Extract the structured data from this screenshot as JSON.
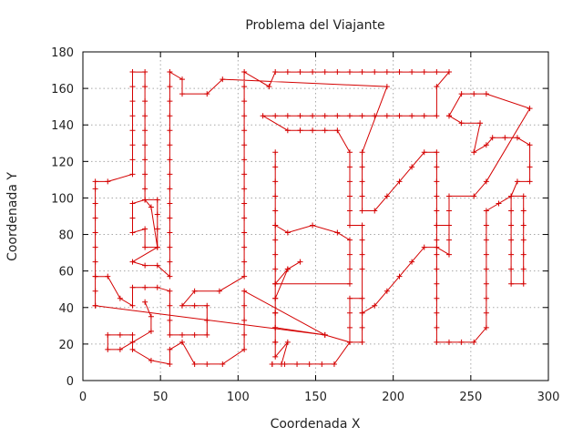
{
  "chart_data": {
    "type": "line",
    "title": "Problema del Viajante",
    "xlabel": "Coordenada X",
    "ylabel": "Coordenada Y",
    "xlim": [
      0,
      300
    ],
    "ylim": [
      0,
      180
    ],
    "xticks": [
      0,
      50,
      100,
      150,
      200,
      250,
      300
    ],
    "yticks": [
      0,
      20,
      40,
      60,
      80,
      100,
      120,
      140,
      160,
      180
    ],
    "grid": true,
    "series_color": "#d40000",
    "marker": "plus",
    "series": [
      {
        "points": [
          [
            8,
            41
          ],
          [
            8,
            49
          ],
          [
            8,
            57
          ],
          [
            8,
            65
          ],
          [
            8,
            73
          ],
          [
            8,
            81
          ],
          [
            8,
            89
          ],
          [
            8,
            97
          ],
          [
            8,
            105
          ],
          [
            8,
            109
          ],
          [
            16,
            109
          ],
          [
            32,
            113
          ],
          [
            32,
            121
          ],
          [
            32,
            129
          ],
          [
            32,
            137
          ],
          [
            32,
            145
          ],
          [
            32,
            153
          ],
          [
            32,
            161
          ],
          [
            32,
            169
          ],
          [
            40,
            169
          ],
          [
            40,
            161
          ],
          [
            40,
            153
          ],
          [
            40,
            145
          ],
          [
            40,
            137
          ],
          [
            40,
            129
          ],
          [
            40,
            121
          ],
          [
            40,
            113
          ],
          [
            40,
            105
          ],
          [
            40,
            99
          ],
          [
            48,
            99
          ],
          [
            48,
            91
          ],
          [
            48,
            83
          ],
          [
            48,
            73
          ],
          [
            40,
            73
          ],
          [
            40,
            83
          ],
          [
            32,
            81
          ],
          [
            32,
            89
          ],
          [
            32,
            97
          ],
          [
            40,
            99
          ],
          [
            44,
            95
          ],
          [
            48,
            73
          ],
          [
            32,
            65
          ],
          [
            40,
            63
          ],
          [
            48,
            63
          ],
          [
            56,
            57
          ],
          [
            56,
            65
          ],
          [
            56,
            73
          ],
          [
            56,
            81
          ],
          [
            56,
            89
          ],
          [
            56,
            97
          ],
          [
            56,
            105
          ],
          [
            56,
            113
          ],
          [
            56,
            121
          ],
          [
            56,
            129
          ],
          [
            56,
            137
          ],
          [
            56,
            145
          ],
          [
            56,
            153
          ],
          [
            56,
            161
          ],
          [
            56,
            169
          ],
          [
            64,
            165
          ],
          [
            64,
            157
          ],
          [
            80,
            157
          ],
          [
            90,
            165
          ],
          [
            196,
            161
          ],
          [
            180,
            125
          ],
          [
            180,
            117
          ],
          [
            180,
            109
          ],
          [
            180,
            101
          ],
          [
            180,
            93
          ],
          [
            188,
            93
          ],
          [
            196,
            101
          ],
          [
            204,
            109
          ],
          [
            212,
            117
          ],
          [
            220,
            125
          ],
          [
            228,
            125
          ],
          [
            228,
            117
          ],
          [
            228,
            109
          ],
          [
            228,
            101
          ],
          [
            228,
            93
          ],
          [
            228,
            85
          ],
          [
            236,
            85
          ],
          [
            236,
            77
          ],
          [
            236,
            69
          ],
          [
            228,
            73
          ],
          [
            220,
            73
          ],
          [
            212,
            65
          ],
          [
            204,
            57
          ],
          [
            196,
            49
          ],
          [
            188,
            41
          ],
          [
            180,
            37
          ],
          [
            180,
            45
          ],
          [
            172,
            45
          ],
          [
            172,
            37
          ],
          [
            172,
            29
          ],
          [
            172,
            21
          ],
          [
            180,
            21
          ],
          [
            180,
            29
          ],
          [
            180,
            37
          ],
          [
            180,
            61
          ],
          [
            180,
            69
          ],
          [
            180,
            77
          ],
          [
            180,
            85
          ],
          [
            172,
            85
          ],
          [
            172,
            93
          ],
          [
            172,
            101
          ],
          [
            172,
            109
          ],
          [
            172,
            117
          ],
          [
            172,
            125
          ],
          [
            164,
            137
          ],
          [
            156,
            137
          ],
          [
            148,
            137
          ],
          [
            140,
            137
          ],
          [
            132,
            137
          ],
          [
            116,
            145
          ],
          [
            124,
            145
          ],
          [
            132,
            145
          ],
          [
            140,
            145
          ],
          [
            148,
            145
          ],
          [
            156,
            145
          ],
          [
            164,
            145
          ],
          [
            172,
            145
          ],
          [
            180,
            145
          ],
          [
            188,
            145
          ],
          [
            196,
            145
          ],
          [
            204,
            145
          ],
          [
            212,
            145
          ],
          [
            220,
            145
          ],
          [
            228,
            145
          ],
          [
            228,
            161
          ],
          [
            236,
            169
          ],
          [
            228,
            169
          ],
          [
            220,
            169
          ],
          [
            212,
            169
          ],
          [
            204,
            169
          ],
          [
            196,
            169
          ],
          [
            188,
            169
          ],
          [
            180,
            169
          ],
          [
            172,
            169
          ],
          [
            164,
            169
          ],
          [
            156,
            169
          ],
          [
            148,
            169
          ],
          [
            140,
            169
          ],
          [
            132,
            169
          ],
          [
            124,
            169
          ],
          [
            120,
            161
          ],
          [
            104,
            169
          ],
          [
            104,
            161
          ],
          [
            104,
            153
          ],
          [
            104,
            145
          ],
          [
            104,
            137
          ],
          [
            104,
            129
          ],
          [
            104,
            121
          ],
          [
            104,
            113
          ],
          [
            104,
            105
          ],
          [
            104,
            97
          ],
          [
            104,
            89
          ],
          [
            104,
            81
          ],
          [
            104,
            73
          ],
          [
            104,
            65
          ],
          [
            104,
            57
          ],
          [
            88,
            49
          ],
          [
            72,
            49
          ],
          [
            64,
            41
          ],
          [
            72,
            41
          ],
          [
            80,
            41
          ],
          [
            80,
            33
          ],
          [
            80,
            25
          ],
          [
            72,
            25
          ],
          [
            64,
            25
          ],
          [
            56,
            25
          ],
          [
            56,
            33
          ],
          [
            56,
            41
          ],
          [
            56,
            49
          ],
          [
            48,
            51
          ],
          [
            40,
            51
          ],
          [
            32,
            51
          ],
          [
            32,
            41
          ],
          [
            24,
            45
          ],
          [
            16,
            57
          ],
          [
            8,
            57
          ]
        ]
      },
      {
        "points": [
          [
            8,
            41
          ],
          [
            156,
            25
          ],
          [
            104,
            49
          ],
          [
            104,
            41
          ],
          [
            104,
            33
          ],
          [
            104,
            25
          ],
          [
            104,
            17
          ],
          [
            90,
            9
          ],
          [
            80,
            9
          ],
          [
            72,
            9
          ],
          [
            64,
            21
          ],
          [
            56,
            17
          ],
          [
            56,
            9
          ],
          [
            44,
            11
          ],
          [
            32,
            17
          ],
          [
            32,
            25
          ],
          [
            24,
            25
          ],
          [
            16,
            25
          ],
          [
            16,
            17
          ],
          [
            24,
            17
          ],
          [
            32,
            21
          ],
          [
            44,
            27
          ],
          [
            44,
            35
          ],
          [
            40,
            43
          ]
        ]
      },
      {
        "points": [
          [
            122,
            9
          ],
          [
            130,
            9
          ],
          [
            138,
            9
          ],
          [
            146,
            9
          ],
          [
            154,
            9
          ],
          [
            162,
            9
          ],
          [
            172,
            21
          ],
          [
            156,
            25
          ],
          [
            124,
            29
          ],
          [
            124,
            21
          ],
          [
            124,
            37
          ],
          [
            124,
            45
          ],
          [
            124,
            53
          ],
          [
            124,
            61
          ],
          [
            124,
            69
          ],
          [
            124,
            77
          ],
          [
            124,
            85
          ],
          [
            124,
            93
          ],
          [
            124,
            101
          ],
          [
            124,
            109
          ],
          [
            124,
            117
          ],
          [
            124,
            125
          ],
          [
            124,
            85
          ],
          [
            132,
            81
          ],
          [
            148,
            85
          ],
          [
            164,
            81
          ],
          [
            172,
            77
          ],
          [
            172,
            69
          ],
          [
            172,
            61
          ],
          [
            172,
            53
          ],
          [
            124,
            53
          ],
          [
            132,
            61
          ],
          [
            140,
            65
          ],
          [
            132,
            61
          ],
          [
            124,
            45
          ],
          [
            124,
            37
          ],
          [
            124,
            29
          ],
          [
            124,
            21
          ],
          [
            124,
            13
          ],
          [
            132,
            21
          ],
          [
            128,
            9
          ],
          [
            122,
            9
          ]
        ]
      },
      {
        "points": [
          [
            236,
            145
          ],
          [
            244,
            157
          ],
          [
            252,
            157
          ],
          [
            260,
            157
          ],
          [
            288,
            149
          ],
          [
            260,
            109
          ],
          [
            252,
            101
          ],
          [
            236,
            101
          ],
          [
            236,
            93
          ],
          [
            236,
            85
          ],
          [
            228,
            85
          ],
          [
            228,
            77
          ],
          [
            228,
            69
          ],
          [
            228,
            61
          ],
          [
            228,
            53
          ],
          [
            228,
            45
          ],
          [
            228,
            37
          ],
          [
            228,
            29
          ],
          [
            228,
            21
          ],
          [
            236,
            21
          ],
          [
            244,
            21
          ],
          [
            252,
            21
          ],
          [
            260,
            29
          ],
          [
            260,
            37
          ],
          [
            260,
            45
          ],
          [
            260,
            53
          ],
          [
            260,
            61
          ],
          [
            260,
            69
          ],
          [
            260,
            77
          ],
          [
            260,
            85
          ],
          [
            260,
            93
          ],
          [
            268,
            97
          ],
          [
            276,
            101
          ],
          [
            284,
            101
          ],
          [
            284,
            93
          ],
          [
            284,
            85
          ],
          [
            284,
            77
          ],
          [
            284,
            69
          ],
          [
            284,
            61
          ],
          [
            284,
            53
          ],
          [
            276,
            53
          ],
          [
            276,
            61
          ],
          [
            276,
            69
          ],
          [
            276,
            77
          ],
          [
            276,
            85
          ],
          [
            276,
            93
          ],
          [
            276,
            101
          ],
          [
            280,
            109
          ],
          [
            288,
            109
          ],
          [
            288,
            117
          ],
          [
            288,
            129
          ],
          [
            280,
            133
          ],
          [
            272,
            133
          ],
          [
            264,
            133
          ],
          [
            260,
            129
          ],
          [
            252,
            125
          ],
          [
            256,
            141
          ],
          [
            244,
            141
          ],
          [
            236,
            145
          ]
        ]
      }
    ]
  }
}
